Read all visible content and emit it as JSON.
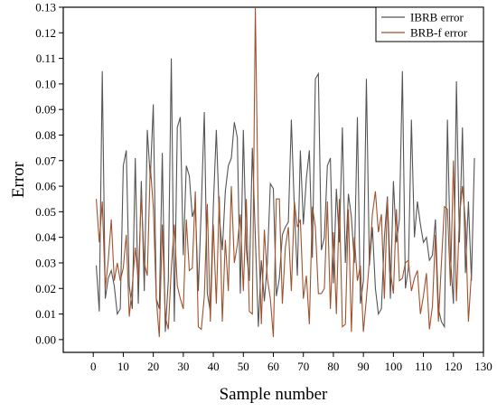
{
  "chart_data": {
    "type": "line",
    "xlabel": "Sample number",
    "ylabel": "Error",
    "xlim": [
      -10,
      130
    ],
    "ylim": [
      -0.005,
      0.13
    ],
    "x_ticks": [
      0,
      10,
      20,
      30,
      40,
      50,
      60,
      70,
      80,
      90,
      100,
      110,
      120,
      130
    ],
    "y_ticks": [
      0.0,
      0.01,
      0.02,
      0.03,
      0.04,
      0.05,
      0.06,
      0.07,
      0.08,
      0.09,
      0.1,
      0.11,
      0.12,
      0.13
    ],
    "x_tick_labels": [
      "0",
      "10",
      "20",
      "30",
      "40",
      "50",
      "60",
      "70",
      "80",
      "90",
      "100",
      "110",
      "120",
      "130"
    ],
    "y_tick_labels": [
      "0.00",
      "0.01",
      "0.02",
      "0.03",
      "0.04",
      "0.05",
      "0.06",
      "0.07",
      "0.08",
      "0.09",
      "0.10",
      "0.11",
      "0.12",
      "0.13"
    ],
    "legend_position": "top-right",
    "grid": false,
    "series": [
      {
        "name": "IBRB error",
        "color": "#555555",
        "x_start": 1,
        "values": [
          0.029,
          0.011,
          0.105,
          0.016,
          0.024,
          0.027,
          0.021,
          0.01,
          0.012,
          0.068,
          0.074,
          0.021,
          0.012,
          0.071,
          0.014,
          0.062,
          0.019,
          0.082,
          0.063,
          0.092,
          0.016,
          0.012,
          0.073,
          0.003,
          0.023,
          0.11,
          0.007,
          0.083,
          0.087,
          0.033,
          0.068,
          0.064,
          0.048,
          0.052,
          0.019,
          0.052,
          0.089,
          0.018,
          0.011,
          0.052,
          0.082,
          0.048,
          0.035,
          0.058,
          0.068,
          0.071,
          0.085,
          0.079,
          0.018,
          0.082,
          0.035,
          0.023,
          0.075,
          0.04,
          0.005,
          0.031,
          0.015,
          0.03,
          0.061,
          0.059,
          0.017,
          0.024,
          0.041,
          0.044,
          0.046,
          0.086,
          0.051,
          0.025,
          0.074,
          0.045,
          0.063,
          0.074,
          0.032,
          0.102,
          0.104,
          0.035,
          0.04,
          0.068,
          0.071,
          0.022,
          0.059,
          0.038,
          0.083,
          0.03,
          0.057,
          0.048,
          0.03,
          0.087,
          0.014,
          0.023,
          0.102,
          0.029,
          0.044,
          0.02,
          0.01,
          0.012,
          0.04,
          0.056,
          0.016,
          0.062,
          0.038,
          0.047,
          0.105,
          0.02,
          0.028,
          0.086,
          0.04,
          0.054,
          0.045,
          0.038,
          0.04,
          0.031,
          0.033,
          0.047,
          0.012,
          0.007,
          0.005,
          0.086,
          0.032,
          0.014,
          0.101,
          0.038,
          0.083,
          0.026,
          0.054,
          0.023,
          0.071
        ]
      },
      {
        "name": "BRB-f error",
        "color": "#a0522d",
        "x_start": 1,
        "values": [
          0.055,
          0.038,
          0.054,
          0.02,
          0.031,
          0.047,
          0.023,
          0.03,
          0.023,
          0.028,
          0.041,
          0.009,
          0.021,
          0.036,
          0.023,
          0.057,
          0.03,
          0.025,
          0.068,
          0.052,
          0.016,
          0.001,
          0.045,
          0.009,
          0.004,
          0.028,
          0.045,
          0.021,
          0.016,
          0.012,
          0.047,
          0.027,
          0.028,
          0.058,
          0.005,
          0.004,
          0.017,
          0.053,
          0.007,
          0.045,
          0.014,
          0.056,
          0.007,
          0.039,
          0.019,
          0.06,
          0.03,
          0.037,
          0.049,
          0.019,
          0.055,
          0.011,
          0.01,
          0.13,
          0.045,
          0.006,
          0.043,
          0.024,
          0.016,
          0.001,
          0.055,
          0.055,
          0.014,
          0.036,
          0.044,
          0.019,
          0.054,
          0.044,
          0.047,
          0.016,
          0.025,
          0.006,
          0.052,
          0.044,
          0.018,
          0.018,
          0.02,
          0.054,
          0.012,
          0.042,
          0.01,
          0.055,
          0.005,
          0.006,
          0.051,
          0.003,
          0.04,
          0.023,
          0.029,
          0.003,
          0.016,
          0.031,
          0.049,
          0.058,
          0.042,
          0.049,
          0.016,
          0.055,
          0.027,
          0.018,
          0.051,
          0.023,
          0.024,
          0.03,
          0.031,
          0.019,
          0.024,
          0.027,
          0.01,
          0.017,
          0.026,
          0.004,
          0.013,
          0.041,
          0.007,
          0.03,
          0.052,
          0.051,
          0.021,
          0.07,
          0.015,
          0.048,
          0.06,
          0.046,
          0.007,
          0.026
        ]
      }
    ]
  }
}
